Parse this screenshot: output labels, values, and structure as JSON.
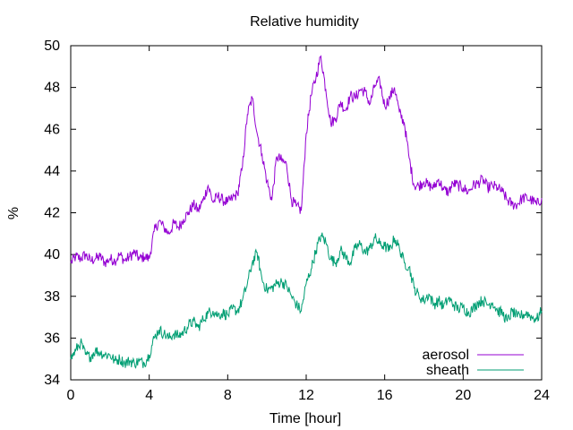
{
  "chart_data": {
    "type": "line",
    "title": "Relative humidity",
    "xlabel": "Time [hour]",
    "ylabel": "%",
    "xlim": [
      0,
      24
    ],
    "ylim": [
      34,
      50
    ],
    "x_ticks": [
      0,
      4,
      8,
      12,
      16,
      20,
      24
    ],
    "y_ticks": [
      34,
      36,
      38,
      40,
      42,
      44,
      46,
      48,
      50
    ],
    "grid": false,
    "legend_position": "bottom-right",
    "series": [
      {
        "name": "aerosol",
        "color": "#9400d3",
        "x": [
          0,
          0.25,
          0.5,
          0.75,
          1,
          1.25,
          1.5,
          1.75,
          2,
          2.25,
          2.5,
          2.75,
          3,
          3.25,
          3.5,
          3.75,
          4,
          4.25,
          4.5,
          4.75,
          5,
          5.25,
          5.5,
          5.75,
          6,
          6.25,
          6.5,
          6.75,
          7,
          7.25,
          7.5,
          7.75,
          8,
          8.25,
          8.5,
          8.75,
          9,
          9.25,
          9.5,
          9.75,
          10,
          10.25,
          10.5,
          10.75,
          11,
          11.25,
          11.5,
          11.75,
          12,
          12.25,
          12.5,
          12.75,
          13,
          13.25,
          13.5,
          13.75,
          14,
          14.25,
          14.5,
          14.75,
          15,
          15.25,
          15.5,
          15.75,
          16,
          16.25,
          16.5,
          16.75,
          17,
          17.25,
          17.5,
          17.75,
          18,
          18.25,
          18.5,
          18.75,
          19,
          19.25,
          19.5,
          19.75,
          20,
          20.25,
          20.5,
          20.75,
          21,
          21.25,
          21.5,
          21.75,
          22,
          22.25,
          22.5,
          22.75,
          23,
          23.25,
          23.5,
          23.75,
          24
        ],
        "y": [
          39.6,
          39.9,
          39.8,
          40.0,
          39.7,
          39.8,
          39.9,
          39.6,
          39.8,
          39.7,
          40.0,
          39.7,
          39.9,
          40.1,
          39.8,
          39.9,
          39.8,
          41.1,
          41.6,
          41.3,
          41.0,
          41.5,
          41.3,
          41.7,
          42.0,
          42.4,
          42.1,
          42.6,
          43.3,
          42.5,
          42.8,
          42.6,
          42.5,
          42.7,
          42.9,
          44.2,
          46.7,
          47.5,
          45.8,
          44.8,
          43.5,
          42.6,
          44.7,
          44.5,
          44.3,
          42.6,
          42.3,
          42.1,
          45.8,
          47.6,
          48.5,
          49.5,
          47.9,
          46.3,
          46.5,
          47.3,
          46.9,
          47.6,
          47.5,
          47.9,
          47.8,
          47.2,
          48.1,
          48.3,
          47.1,
          47.5,
          48.0,
          46.8,
          46.3,
          44.6,
          43.3,
          43.3,
          43.5,
          43.3,
          43.2,
          43.6,
          43.1,
          43.0,
          43.4,
          43.3,
          43.2,
          43.0,
          43.3,
          43.4,
          43.6,
          43.2,
          43.3,
          43.2,
          43.0,
          42.6,
          42.4,
          42.4,
          42.7,
          42.7,
          42.6,
          42.4,
          42.7
        ],
        "x_smooth_ranges": []
      },
      {
        "name": "sheath",
        "color": "#009e73",
        "x": [
          0,
          0.25,
          0.5,
          0.75,
          1,
          1.25,
          1.5,
          1.75,
          2,
          2.25,
          2.5,
          2.75,
          3,
          3.25,
          3.5,
          3.75,
          4,
          4.25,
          4.5,
          4.75,
          5,
          5.25,
          5.5,
          5.75,
          6,
          6.25,
          6.5,
          6.75,
          7,
          7.25,
          7.5,
          7.75,
          8,
          8.25,
          8.5,
          8.75,
          9,
          9.25,
          9.5,
          9.75,
          10,
          10.25,
          10.5,
          10.75,
          11,
          11.25,
          11.5,
          11.75,
          12,
          12.25,
          12.5,
          12.75,
          13,
          13.25,
          13.5,
          13.75,
          14,
          14.25,
          14.5,
          14.75,
          15,
          15.25,
          15.5,
          15.75,
          16,
          16.25,
          16.5,
          16.75,
          17,
          17.25,
          17.5,
          17.75,
          18,
          18.25,
          18.5,
          18.75,
          19,
          19.25,
          19.5,
          19.75,
          20,
          20.25,
          20.5,
          20.75,
          21,
          21.25,
          21.5,
          21.75,
          22,
          22.25,
          22.5,
          22.75,
          23,
          23.25,
          23.5,
          23.75,
          24
        ],
        "y": [
          35.0,
          35.4,
          35.8,
          35.2,
          35.1,
          35.4,
          35.3,
          35.2,
          35.2,
          34.9,
          35.0,
          34.8,
          34.9,
          34.8,
          34.9,
          34.8,
          35.2,
          36.0,
          36.4,
          36.2,
          36.0,
          36.2,
          36.1,
          36.3,
          36.6,
          36.8,
          36.5,
          36.9,
          37.2,
          37.3,
          37.1,
          37.2,
          37.1,
          37.4,
          37.3,
          37.8,
          38.6,
          39.6,
          40.1,
          38.8,
          38.3,
          38.4,
          38.6,
          38.7,
          38.5,
          38.0,
          37.6,
          37.3,
          38.6,
          39.3,
          40.2,
          40.9,
          40.6,
          39.8,
          39.6,
          40.2,
          39.9,
          39.6,
          40.3,
          40.5,
          40.1,
          40.3,
          40.8,
          40.5,
          40.4,
          40.2,
          40.8,
          40.3,
          39.6,
          39.4,
          38.4,
          38.0,
          37.8,
          38.1,
          37.6,
          37.8,
          37.5,
          37.9,
          37.6,
          37.4,
          37.5,
          37.2,
          37.4,
          37.7,
          37.8,
          37.6,
          37.7,
          37.3,
          37.2,
          36.8,
          37.3,
          37.0,
          37.1,
          37.2,
          37.0,
          36.9,
          37.3
        ],
        "x_smooth_ranges": []
      }
    ]
  }
}
